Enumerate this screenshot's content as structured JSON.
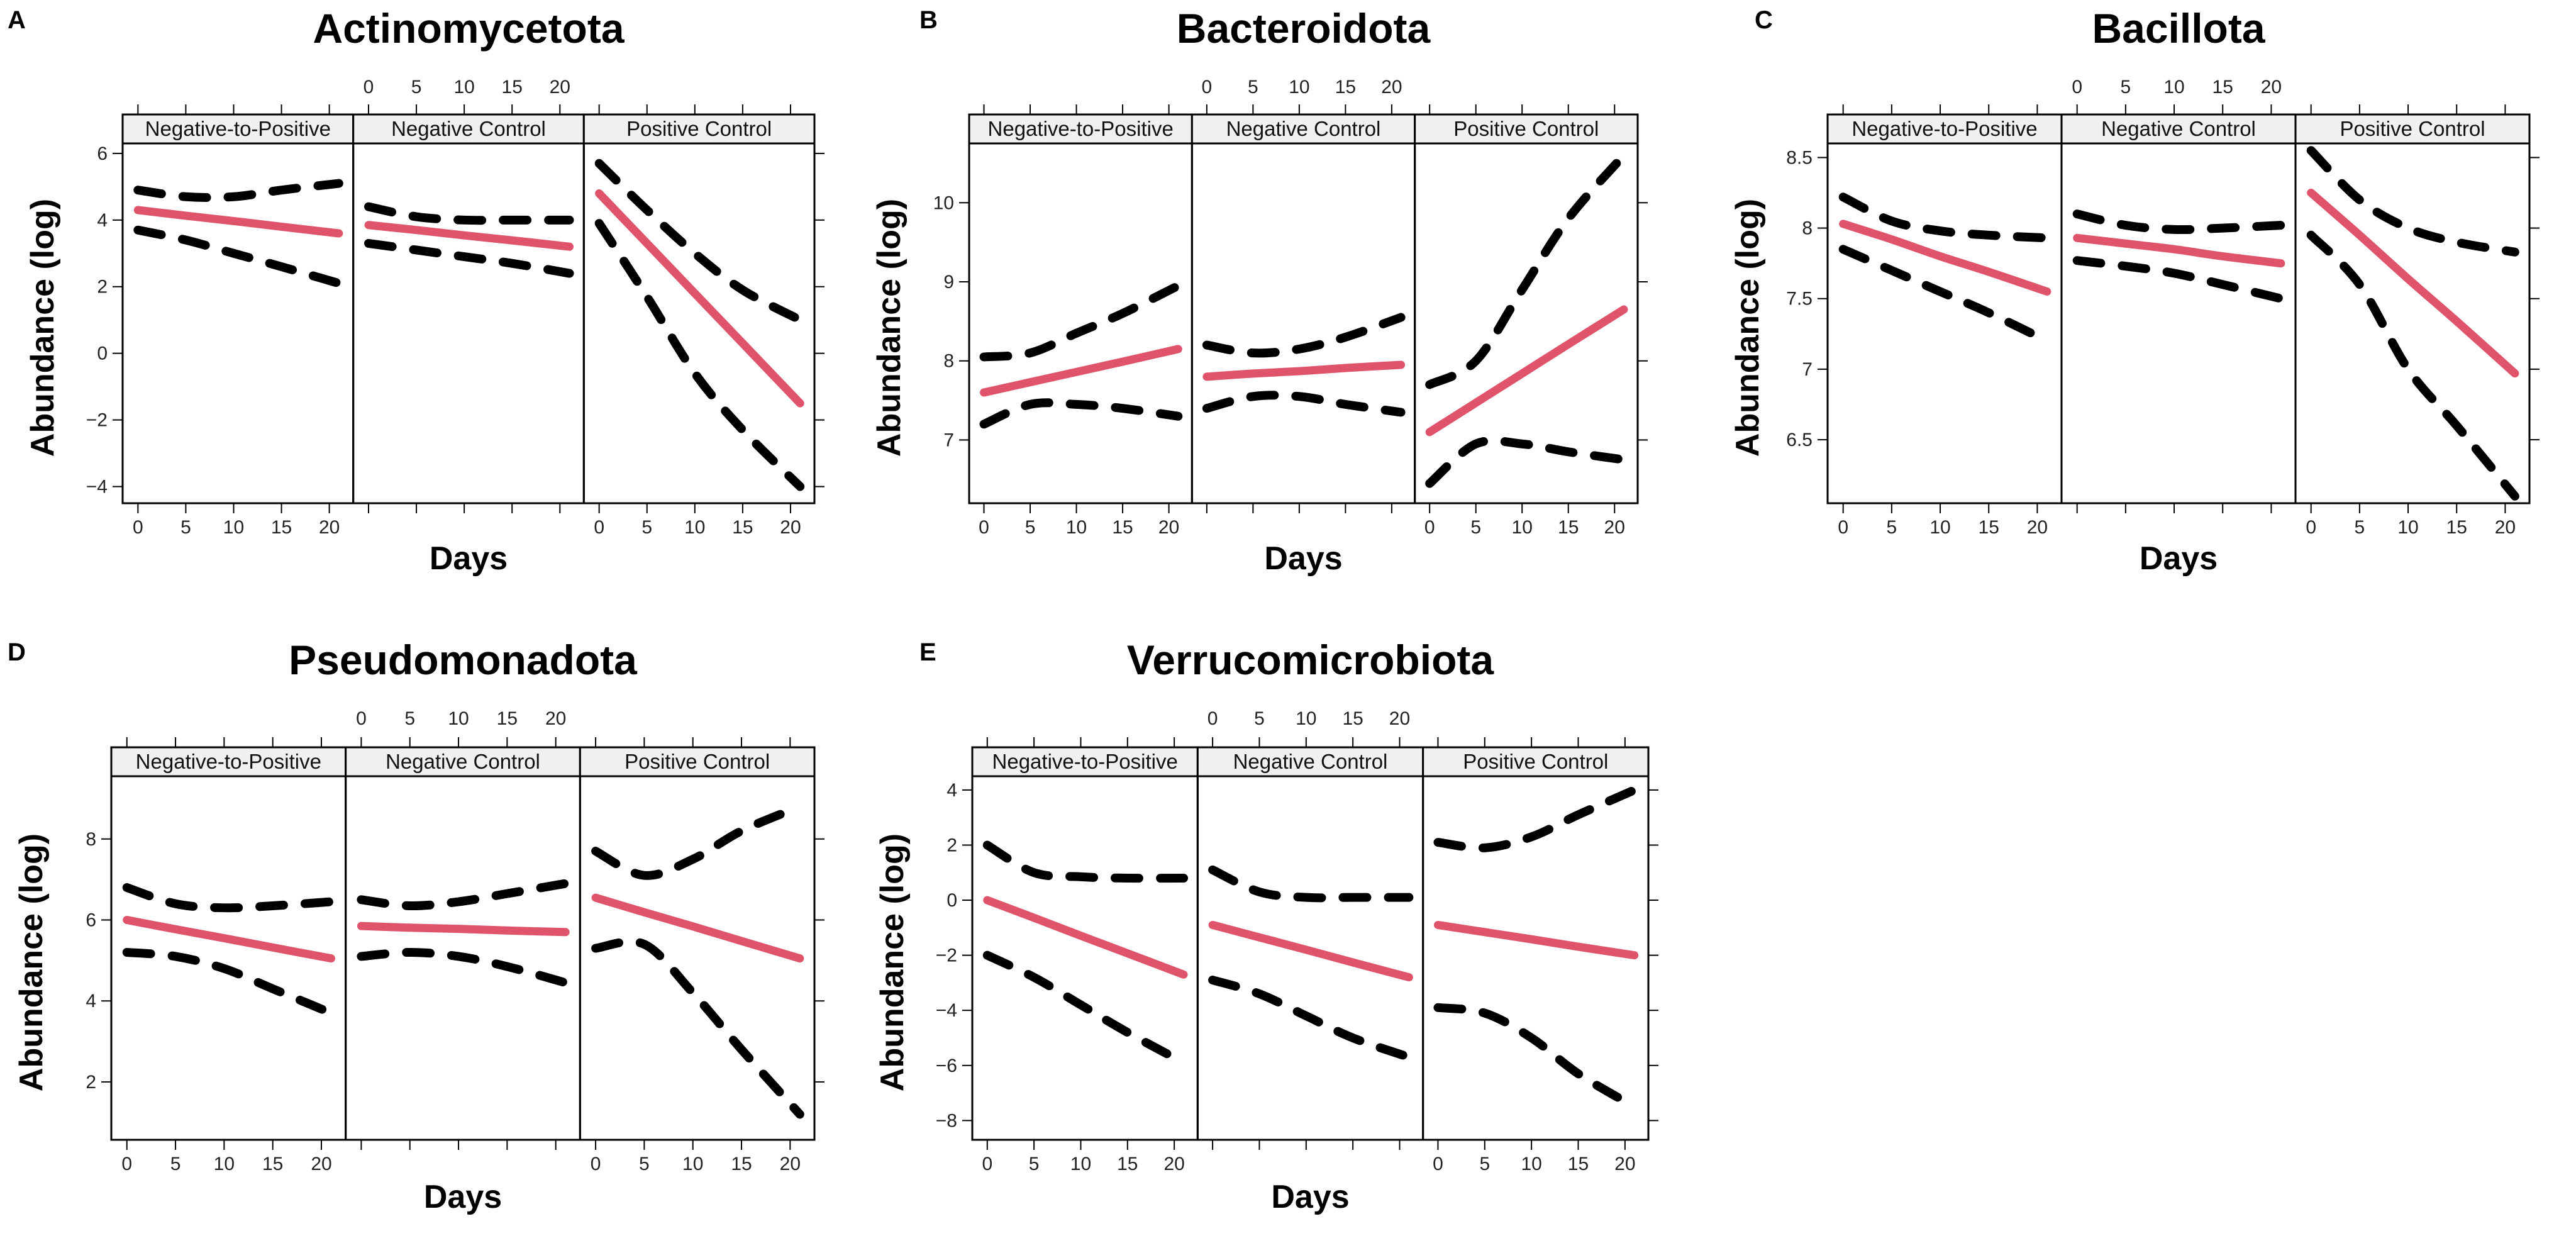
{
  "colors": {
    "fit": "#DF536B",
    "ci": "#000000",
    "strip_bg": "#F0F0F0"
  },
  "chart_data": [
    {
      "type": "line",
      "letter": "A",
      "title": "Actinomycetota",
      "xlabel": "Days",
      "ylabel": "Abundance (log)",
      "ylim": [
        -4.5,
        6.3
      ],
      "yticks": [
        -4,
        -2,
        0,
        2,
        4,
        6
      ],
      "xticks": [
        0,
        5,
        10,
        15,
        20
      ],
      "facets": [
        {
          "name": "Negative-to-Positive",
          "x": [
            0,
            5,
            10,
            15,
            21
          ],
          "fit": [
            4.3,
            4.13,
            3.97,
            3.8,
            3.6
          ],
          "upper": [
            4.9,
            4.7,
            4.7,
            4.9,
            5.1
          ],
          "lower": [
            3.7,
            3.4,
            3.0,
            2.6,
            2.1
          ]
        },
        {
          "name": "Negative Control",
          "x": [
            0,
            5,
            10,
            15,
            21
          ],
          "fit": [
            3.85,
            3.7,
            3.54,
            3.39,
            3.2
          ],
          "upper": [
            4.4,
            4.1,
            4.0,
            4.0,
            4.0
          ],
          "lower": [
            3.3,
            3.1,
            2.9,
            2.7,
            2.4
          ]
        },
        {
          "name": "Positive Control",
          "x": [
            0,
            5,
            10,
            15,
            21
          ],
          "fit": [
            4.8,
            3.3,
            1.8,
            0.3,
            -1.5
          ],
          "upper": [
            5.7,
            4.3,
            3.0,
            1.9,
            1.0
          ],
          "lower": [
            3.9,
            1.7,
            -0.6,
            -2.3,
            -4.0
          ]
        }
      ]
    },
    {
      "type": "line",
      "letter": "B",
      "title": "Bacteroidota",
      "xlabel": "Days",
      "ylabel": "Abundance (log)",
      "ylim": [
        6.2,
        10.75
      ],
      "yticks": [
        7,
        8,
        9,
        10
      ],
      "xticks": [
        0,
        5,
        10,
        15,
        20
      ],
      "facets": [
        {
          "name": "Negative-to-Positive",
          "x": [
            0,
            5,
            10,
            15,
            21
          ],
          "fit": [
            7.6,
            7.73,
            7.86,
            7.99,
            8.15
          ],
          "upper": [
            8.05,
            8.1,
            8.35,
            8.6,
            8.95
          ],
          "lower": [
            7.2,
            7.45,
            7.45,
            7.4,
            7.3
          ]
        },
        {
          "name": "Negative Control",
          "x": [
            0,
            5,
            10,
            15,
            21
          ],
          "fit": [
            7.8,
            7.84,
            7.87,
            7.91,
            7.95
          ],
          "upper": [
            8.2,
            8.1,
            8.15,
            8.3,
            8.55
          ],
          "lower": [
            7.4,
            7.55,
            7.55,
            7.45,
            7.35
          ]
        },
        {
          "name": "Positive Control",
          "x": [
            0,
            5,
            10,
            15,
            21
          ],
          "fit": [
            7.1,
            7.47,
            7.84,
            8.21,
            8.65
          ],
          "upper": [
            7.7,
            8.0,
            8.9,
            9.8,
            10.6
          ],
          "lower": [
            6.45,
            6.95,
            6.95,
            6.85,
            6.75
          ]
        }
      ]
    },
    {
      "type": "line",
      "letter": "C",
      "title": "Bacillota",
      "xlabel": "Days",
      "ylabel": "Abundance (log)",
      "ylim": [
        6.05,
        8.6
      ],
      "yticks": [
        6.5,
        7.0,
        7.5,
        8.0,
        8.5
      ],
      "xticks": [
        0,
        5,
        10,
        15,
        20
      ],
      "facets": [
        {
          "name": "Negative-to-Positive",
          "x": [
            0,
            5,
            10,
            15,
            21
          ],
          "fit": [
            8.03,
            7.92,
            7.8,
            7.69,
            7.55
          ],
          "upper": [
            8.22,
            8.05,
            7.98,
            7.95,
            7.93
          ],
          "lower": [
            7.85,
            7.7,
            7.55,
            7.4,
            7.2
          ]
        },
        {
          "name": "Negative Control",
          "x": [
            0,
            5,
            10,
            15,
            21
          ],
          "fit": [
            7.93,
            7.89,
            7.85,
            7.8,
            7.75
          ],
          "upper": [
            8.1,
            8.02,
            7.99,
            8.0,
            8.02
          ],
          "lower": [
            7.77,
            7.73,
            7.68,
            7.6,
            7.5
          ]
        },
        {
          "name": "Positive Control",
          "x": [
            0,
            5,
            10,
            15,
            21
          ],
          "fit": [
            8.25,
            7.95,
            7.64,
            7.34,
            6.97
          ],
          "upper": [
            8.55,
            8.2,
            8.0,
            7.9,
            7.83
          ],
          "lower": [
            7.95,
            7.6,
            7.0,
            6.6,
            6.1
          ]
        }
      ]
    },
    {
      "type": "line",
      "letter": "D",
      "title": "Pseudomonadota",
      "xlabel": "Days",
      "ylabel": "Abundance (log)",
      "ylim": [
        0.57,
        9.55
      ],
      "yticks": [
        2,
        4,
        6,
        8
      ],
      "xticks": [
        0,
        5,
        10,
        15,
        20
      ],
      "facets": [
        {
          "name": "Negative-to-Positive",
          "x": [
            0,
            5,
            10,
            15,
            21
          ],
          "fit": [
            6.0,
            5.77,
            5.55,
            5.32,
            5.05
          ],
          "upper": [
            6.8,
            6.4,
            6.3,
            6.35,
            6.45
          ],
          "lower": [
            5.2,
            5.1,
            4.8,
            4.3,
            3.7
          ]
        },
        {
          "name": "Negative Control",
          "x": [
            0,
            5,
            10,
            15,
            21
          ],
          "fit": [
            5.85,
            5.81,
            5.78,
            5.74,
            5.7
          ],
          "upper": [
            6.5,
            6.35,
            6.45,
            6.65,
            6.9
          ],
          "lower": [
            5.1,
            5.2,
            5.1,
            4.85,
            4.45
          ]
        },
        {
          "name": "Positive Control",
          "x": [
            0,
            5,
            10,
            15,
            21
          ],
          "fit": [
            6.55,
            6.19,
            5.84,
            5.48,
            5.05
          ],
          "upper": [
            7.7,
            7.1,
            7.5,
            8.2,
            8.8
          ],
          "lower": [
            5.3,
            5.4,
            4.2,
            2.8,
            1.2
          ]
        }
      ]
    },
    {
      "type": "line",
      "letter": "E",
      "title": "Verrucomicrobiota",
      "xlabel": "Days",
      "ylabel": "Abundance (log)",
      "ylim": [
        -8.7,
        4.5
      ],
      "yticks": [
        -8,
        -6,
        -4,
        -2,
        0,
        2,
        4
      ],
      "xticks": [
        0,
        5,
        10,
        15,
        20
      ],
      "facets": [
        {
          "name": "Negative-to-Positive",
          "x": [
            0,
            5,
            10,
            15,
            21
          ],
          "fit": [
            0,
            -0.64,
            -1.29,
            -1.93,
            -2.7
          ],
          "upper": [
            2.0,
            1.0,
            0.85,
            0.8,
            0.8
          ],
          "lower": [
            -2.0,
            -2.8,
            -3.8,
            -4.8,
            -5.9
          ]
        },
        {
          "name": "Negative Control",
          "x": [
            0,
            5,
            10,
            15,
            21
          ],
          "fit": [
            -0.9,
            -1.35,
            -1.8,
            -2.26,
            -2.8
          ],
          "upper": [
            1.1,
            0.3,
            0.1,
            0.1,
            0.1
          ],
          "lower": [
            -2.9,
            -3.4,
            -4.2,
            -5.0,
            -5.7
          ]
        },
        {
          "name": "Positive Control",
          "x": [
            0,
            5,
            10,
            15,
            21
          ],
          "fit": [
            -0.9,
            -1.16,
            -1.42,
            -1.69,
            -2.0
          ],
          "upper": [
            2.1,
            1.9,
            2.3,
            3.1,
            4.0
          ],
          "lower": [
            -3.9,
            -4.1,
            -5.0,
            -6.3,
            -7.5
          ]
        }
      ]
    }
  ]
}
